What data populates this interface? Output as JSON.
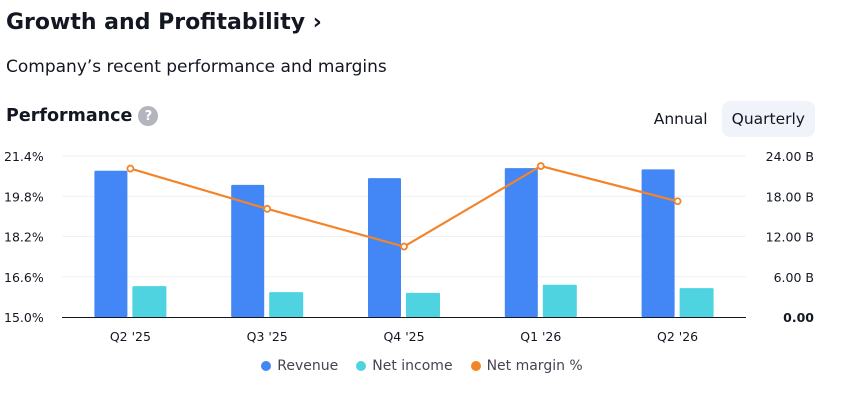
{
  "header": {
    "title": "Growth and Profitability",
    "title_chevron": "›",
    "subtitle": "Company’s recent performance and margins"
  },
  "performance": {
    "title": "Performance",
    "help_icon": "?",
    "toggle": {
      "annual": "Annual",
      "quarterly": "Quarterly",
      "selected": "Quarterly"
    }
  },
  "legend": {
    "revenue": "Revenue",
    "net_income": "Net income",
    "net_margin": "Net margin %"
  },
  "colors": {
    "revenue": "#4386f5",
    "net_income": "#4fd3e0",
    "net_margin": "#f4842a"
  },
  "chart_data": {
    "type": "bar",
    "categories": [
      "Q2 '25",
      "Q3 '25",
      "Q4 '25",
      "Q1 '26",
      "Q2 '26"
    ],
    "series": [
      {
        "name": "Revenue",
        "axis": "right",
        "unit": "B",
        "values": [
          21.8,
          19.7,
          20.7,
          22.2,
          22.0
        ]
      },
      {
        "name": "Net income",
        "axis": "right",
        "unit": "B",
        "values": [
          4.6,
          3.7,
          3.6,
          4.8,
          4.3
        ]
      },
      {
        "name": "Net margin %",
        "axis": "left",
        "type": "line",
        "unit": "%",
        "values": [
          20.9,
          19.3,
          17.8,
          21.0,
          19.6
        ]
      }
    ],
    "left_axis": {
      "ylim": [
        15.0,
        21.4
      ],
      "ticks": [
        15.0,
        16.6,
        18.2,
        19.8,
        21.4
      ],
      "tick_labels": [
        "15.0%",
        "16.6%",
        "18.2%",
        "19.8%",
        "21.4%"
      ]
    },
    "right_axis": {
      "ylim": [
        0,
        24
      ],
      "ticks": [
        0,
        6,
        12,
        18,
        24
      ],
      "tick_labels": [
        "0.00",
        "6.00 B",
        "12.00 B",
        "18.00 B",
        "24.00 B"
      ]
    },
    "grid": true,
    "legend_position": "bottom-center"
  }
}
